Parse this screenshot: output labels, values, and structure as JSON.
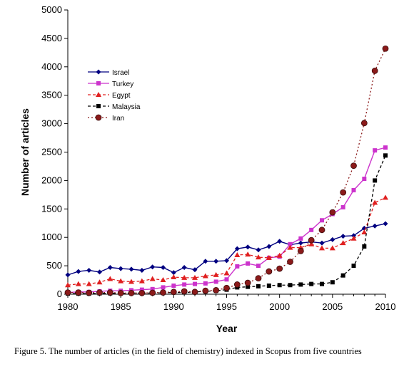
{
  "chart_data": {
    "type": "line",
    "title": "",
    "xlabel": "Year",
    "ylabel": "Number of articles",
    "xlim": [
      1980,
      2010
    ],
    "ylim": [
      0,
      5000
    ],
    "x_ticks": [
      1980,
      1985,
      1990,
      1995,
      2000,
      2005,
      2010
    ],
    "y_ticks": [
      0,
      500,
      1000,
      1500,
      2000,
      2500,
      3000,
      3500,
      4000,
      4500,
      5000
    ],
    "grid": false,
    "legend_position": "top-left",
    "x": [
      1980,
      1981,
      1982,
      1983,
      1984,
      1985,
      1986,
      1987,
      1988,
      1989,
      1990,
      1991,
      1992,
      1993,
      1994,
      1995,
      1996,
      1997,
      1998,
      1999,
      2000,
      2001,
      2002,
      2003,
      2004,
      2005,
      2006,
      2007,
      2008,
      2009,
      2010
    ],
    "series": [
      {
        "name": "Israel",
        "color": "#000080",
        "style": "solid",
        "marker": "diamond",
        "values": [
          340,
          400,
          420,
          390,
          470,
          450,
          440,
          420,
          480,
          470,
          380,
          470,
          430,
          580,
          580,
          590,
          800,
          830,
          780,
          840,
          930,
          870,
          900,
          920,
          900,
          960,
          1020,
          1030,
          1160,
          1200,
          1240
        ]
      },
      {
        "name": "Turkey",
        "color": "#cc33cc",
        "style": "solid",
        "marker": "square",
        "values": [
          30,
          40,
          40,
          50,
          60,
          60,
          70,
          80,
          90,
          120,
          150,
          170,
          180,
          190,
          220,
          260,
          490,
          540,
          500,
          640,
          660,
          880,
          980,
          1130,
          1300,
          1410,
          1530,
          1830,
          2030,
          2530,
          2580
        ]
      },
      {
        "name": "Egypt",
        "color": "#e02020",
        "style": "dashed",
        "marker": "triangle",
        "values": [
          160,
          180,
          180,
          210,
          270,
          230,
          220,
          230,
          270,
          250,
          300,
          290,
          290,
          320,
          340,
          370,
          690,
          700,
          650,
          640,
          680,
          820,
          820,
          880,
          810,
          810,
          900,
          980,
          1090,
          1610,
          1700
        ]
      },
      {
        "name": "Malaysia",
        "color": "#000000",
        "style": "dashed",
        "marker": "square",
        "values": [
          10,
          10,
          10,
          15,
          15,
          15,
          20,
          20,
          20,
          25,
          30,
          30,
          40,
          50,
          60,
          80,
          120,
          130,
          140,
          150,
          160,
          160,
          170,
          180,
          180,
          210,
          330,
          500,
          840,
          2000,
          2440
        ]
      },
      {
        "name": "Iran",
        "color": "#8b1a1a",
        "style": "dotted",
        "marker": "circle",
        "values": [
          30,
          30,
          25,
          30,
          30,
          20,
          20,
          20,
          25,
          30,
          40,
          50,
          40,
          60,
          70,
          110,
          170,
          200,
          280,
          400,
          450,
          570,
          760,
          950,
          1130,
          1440,
          1790,
          2260,
          3010,
          3930,
          4320
        ]
      }
    ]
  },
  "caption": "Figure 5. The number of articles (in the field of chemistry) indexed in Scopus from five countries"
}
